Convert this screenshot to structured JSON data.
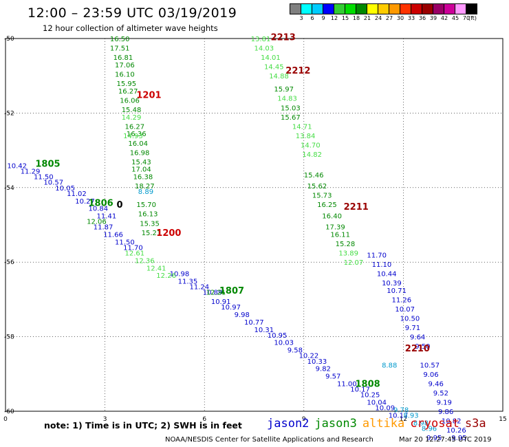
{
  "title": "12:00 – 23:59 UTC 03/19/2019",
  "subtitle": "12 hour collection of altimeter wave heights",
  "colorbar": {
    "colors": [
      "#808080",
      "#00ffff",
      "#00ccff",
      "#0000ff",
      "#33cc33",
      "#00dd00",
      "#008800",
      "#ffff00",
      "#ffcc00",
      "#ff9900",
      "#ff3300",
      "#cc0000",
      "#990000",
      "#990066",
      "#cc0099",
      "#ff99ff",
      "#000000"
    ],
    "ticks": [
      "3",
      "6",
      "9",
      "12",
      "15",
      "18",
      "21",
      "24",
      "27",
      "30",
      "33",
      "36",
      "39",
      "42",
      "45",
      "70",
      "(ft)"
    ]
  },
  "note": "note: 1) Time is in UTC; 2) SWH is in feet",
  "legend": [
    {
      "name": "jason2",
      "color": "#0000cc"
    },
    {
      "name": "jason3",
      "color": "#008800"
    },
    {
      "name": "altika",
      "color": "#ff9900"
    },
    {
      "name": "cryosat",
      "color": "#cc0000"
    },
    {
      "name": "s3a",
      "color": "#990000"
    }
  ],
  "credit": "NOAA/NESDIS Center for Satellite Applications and Research",
  "timestamp": "Mar 20 12:27:45 UTC 2019",
  "chart_data": {
    "type": "scatter",
    "title": "12:00 – 23:59 UTC 03/19/2019",
    "xlim": [
      0,
      15
    ],
    "ylim": [
      -60,
      -50
    ],
    "xticks": [
      0,
      3,
      6,
      9,
      12,
      15
    ],
    "xtick_labels": [
      "0",
      "3",
      "6",
      "9",
      "12",
      "15"
    ],
    "yticks": [
      -50,
      -52,
      -54,
      -56,
      -58,
      -60
    ],
    "ytick_labels": [
      "-50",
      "-52",
      "-54",
      "-56",
      "-58",
      "-60"
    ],
    "grid": true,
    "series": [
      {
        "name": "jason2",
        "color": "#0000cc",
        "points": [
          [
            0.05,
            -53.4,
            "10.42"
          ],
          [
            0.45,
            -53.55,
            "11.29"
          ],
          [
            0.85,
            -53.7,
            "11.50"
          ],
          [
            1.15,
            -53.85,
            "10.57"
          ],
          [
            1.5,
            -54.0,
            "10.05"
          ],
          [
            1.85,
            -54.15,
            "11.02"
          ],
          [
            2.1,
            -54.35,
            "10.27"
          ],
          [
            2.5,
            -54.55,
            "10.84"
          ],
          [
            2.75,
            -54.75,
            "11.41"
          ],
          [
            2.65,
            -55.05,
            "11.87"
          ],
          [
            2.95,
            -55.25,
            "11.66"
          ],
          [
            3.3,
            -55.45,
            "11.50"
          ],
          [
            3.55,
            -55.6,
            "11.70"
          ],
          [
            4.95,
            -56.3,
            "10.98"
          ],
          [
            5.2,
            -56.5,
            "11.35"
          ],
          [
            5.55,
            -56.65,
            "11.24"
          ],
          [
            5.95,
            -56.8,
            "10.89"
          ],
          [
            6.2,
            -57.05,
            "10.91"
          ],
          [
            6.5,
            -57.2,
            "10.97"
          ],
          [
            6.9,
            -57.4,
            "9.98"
          ],
          [
            7.2,
            -57.6,
            "10.77"
          ],
          [
            7.5,
            -57.8,
            "10.31"
          ],
          [
            7.9,
            -57.95,
            "10.95"
          ],
          [
            8.1,
            -58.15,
            "10.03"
          ],
          [
            8.5,
            -58.35,
            "9.58"
          ],
          [
            8.85,
            -58.5,
            "10.22"
          ],
          [
            9.1,
            -58.65,
            "10.33"
          ],
          [
            9.35,
            -58.85,
            "9.82"
          ],
          [
            9.65,
            -59.05,
            "9.57"
          ],
          [
            10.0,
            -59.25,
            "11.00"
          ],
          [
            10.4,
            -59.4,
            "10.17"
          ],
          [
            10.7,
            -59.55,
            "10.25"
          ],
          [
            10.9,
            -59.75,
            "10.04"
          ],
          [
            11.15,
            -59.9,
            "10.09"
          ],
          [
            11.55,
            -60.1,
            "10.17"
          ],
          [
            12.7,
            -60.7,
            "9.95"
          ],
          [
            10.9,
            -55.8,
            "11.70"
          ],
          [
            11.05,
            -56.05,
            "11.10"
          ],
          [
            11.2,
            -56.3,
            "10.44"
          ],
          [
            11.35,
            -56.55,
            "10.39"
          ],
          [
            11.5,
            -56.75,
            "10.71"
          ],
          [
            11.65,
            -57.0,
            "11.26"
          ],
          [
            11.75,
            -57.25,
            "10.07"
          ],
          [
            11.9,
            -57.5,
            "10.50"
          ],
          [
            12.05,
            -57.75,
            "9.71"
          ],
          [
            12.2,
            -58.0,
            "9.64"
          ],
          [
            12.35,
            -58.25,
            "9.50"
          ],
          [
            12.5,
            -58.75,
            "10.57"
          ],
          [
            12.6,
            -59.0,
            "9.06"
          ],
          [
            12.75,
            -59.25,
            "9.46"
          ],
          [
            12.9,
            -59.5,
            "9.52"
          ],
          [
            13.0,
            -59.75,
            "9.19"
          ],
          [
            13.05,
            -60.0,
            "9.86"
          ],
          [
            13.15,
            -60.25,
            "10.82"
          ],
          [
            13.3,
            -60.5,
            "10.26"
          ],
          [
            13.45,
            -60.7,
            "9.95"
          ]
        ]
      },
      {
        "name": "jason3",
        "color": "#008800",
        "points": [
          [
            3.15,
            -50.0,
            "16.50"
          ],
          [
            3.15,
            -50.25,
            "17.51"
          ],
          [
            3.25,
            -50.5,
            "16.81"
          ],
          [
            3.3,
            -50.7,
            "17.06"
          ],
          [
            3.3,
            -50.95,
            "16.10"
          ],
          [
            3.35,
            -51.2,
            "15.95"
          ],
          [
            3.4,
            -51.4,
            "16.27"
          ],
          [
            3.45,
            -51.65,
            "16.06"
          ],
          [
            3.5,
            -51.9,
            "15.48"
          ],
          [
            3.6,
            -52.35,
            "16.27"
          ],
          [
            3.65,
            -52.55,
            "16.36"
          ],
          [
            3.7,
            -52.8,
            "16.04"
          ],
          [
            3.75,
            -53.05,
            "16.98"
          ],
          [
            3.8,
            -53.3,
            "15.43"
          ],
          [
            3.8,
            -53.5,
            "17.04"
          ],
          [
            3.85,
            -53.7,
            "16.38"
          ],
          [
            3.9,
            -53.95,
            "18.27"
          ],
          [
            3.95,
            -54.45,
            "15.70"
          ],
          [
            4.0,
            -54.7,
            "16.13"
          ],
          [
            4.05,
            -54.95,
            "15.35"
          ],
          [
            4.1,
            -55.2,
            "15.21"
          ],
          [
            8.1,
            -51.35,
            "15.97"
          ],
          [
            8.3,
            -51.85,
            "15.03"
          ],
          [
            8.3,
            -52.1,
            "15.67"
          ],
          [
            9.0,
            -53.65,
            "15.46"
          ],
          [
            9.1,
            -53.95,
            "15.62"
          ],
          [
            9.25,
            -54.2,
            "15.73"
          ],
          [
            9.4,
            -54.45,
            "16.25"
          ],
          [
            9.55,
            -54.75,
            "16.40"
          ],
          [
            9.65,
            -55.05,
            "17.39"
          ],
          [
            9.8,
            -55.25,
            "16.11"
          ],
          [
            9.95,
            -55.5,
            "15.28"
          ],
          [
            6.05,
            -56.8,
            "12.21"
          ],
          [
            2.45,
            -54.9,
            "12.06"
          ]
        ]
      },
      {
        "name": "jason3 light",
        "color": "#44dd44",
        "points": [
          [
            3.5,
            -52.1,
            "14.29"
          ],
          [
            3.55,
            -52.6,
            "14.93"
          ],
          [
            7.4,
            -50.0,
            "13.81"
          ],
          [
            7.5,
            -50.25,
            "14.03"
          ],
          [
            7.7,
            -50.5,
            "14.01"
          ],
          [
            7.8,
            -50.75,
            "14.45"
          ],
          [
            7.95,
            -51.0,
            "14.88"
          ],
          [
            8.2,
            -51.6,
            "14.83"
          ],
          [
            8.65,
            -52.35,
            "14.71"
          ],
          [
            8.75,
            -52.6,
            "13.84"
          ],
          [
            8.9,
            -52.85,
            "14.70"
          ],
          [
            8.95,
            -53.1,
            "14.82"
          ],
          [
            10.05,
            -55.75,
            "13.89"
          ],
          [
            10.2,
            -56.0,
            "12.07"
          ],
          [
            3.6,
            -55.75,
            "12.61"
          ],
          [
            3.9,
            -55.95,
            "12.36"
          ],
          [
            4.25,
            -56.15,
            "12.41"
          ],
          [
            4.55,
            -56.35,
            "12.26"
          ]
        ]
      },
      {
        "name": "cyan",
        "color": "#0099cc",
        "points": [
          [
            4.0,
            -54.1,
            "8.89"
          ],
          [
            11.35,
            -58.75,
            "8.88"
          ],
          [
            11.7,
            -59.95,
            "9.78"
          ],
          [
            12.0,
            -60.1,
            "8.93"
          ],
          [
            12.3,
            -60.3,
            "8.98"
          ],
          [
            12.55,
            -60.45,
            "8.96"
          ]
        ]
      }
    ],
    "annotations": [
      {
        "text": "1201",
        "x": 3.95,
        "y": -51.5,
        "color": "#cc0000"
      },
      {
        "text": "1200",
        "x": 4.55,
        "y": -55.2,
        "color": "#cc0000"
      },
      {
        "text": "1805",
        "x": 0.9,
        "y": -53.35,
        "color": "#008800"
      },
      {
        "text": "1806",
        "x": 2.5,
        "y": -54.4,
        "color": "#008800"
      },
      {
        "text": "1807",
        "x": 6.45,
        "y": -56.75,
        "color": "#008800"
      },
      {
        "text": "1808",
        "x": 10.55,
        "y": -59.25,
        "color": "#008800"
      },
      {
        "text": "2213",
        "x": 8.0,
        "y": -49.95,
        "color": "#990000"
      },
      {
        "text": "2212",
        "x": 8.45,
        "y": -50.85,
        "color": "#990000"
      },
      {
        "text": "2211",
        "x": 10.2,
        "y": -54.5,
        "color": "#990000"
      },
      {
        "text": "2210",
        "x": 12.05,
        "y": -58.3,
        "color": "#990000"
      },
      {
        "text": "0",
        "x": 3.35,
        "y": -54.45,
        "color": "#000000"
      }
    ]
  }
}
